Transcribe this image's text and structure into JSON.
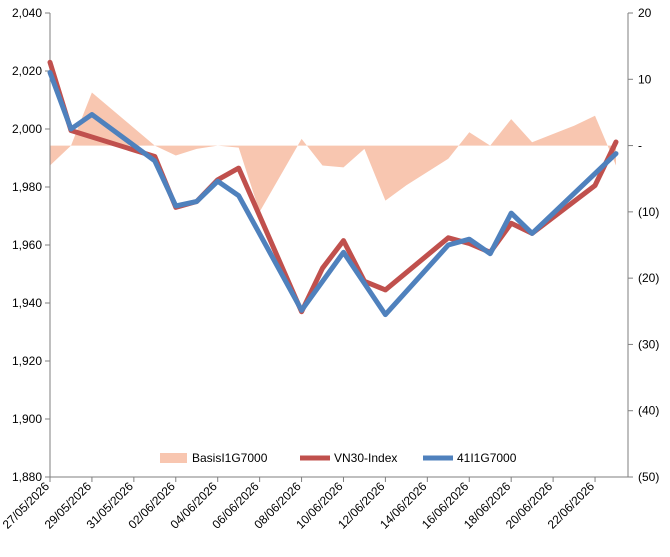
{
  "chart_data": {
    "type": "line",
    "x": [
      "27/05/2026",
      "28/05/2026",
      "29/05/2026",
      "30/05/2026",
      "31/05/2026",
      "01/06/2026",
      "02/06/2026",
      "03/06/2026",
      "04/06/2026",
      "05/06/2026",
      "06/06/2026",
      "07/06/2026",
      "08/06/2026",
      "09/06/2026",
      "10/06/2026",
      "11/06/2026",
      "12/06/2026",
      "13/06/2026",
      "14/06/2026",
      "15/06/2026",
      "16/06/2026",
      "17/06/2026",
      "18/06/2026",
      "19/06/2026",
      "20/06/2026",
      "21/06/2026",
      "22/06/2026",
      "23/06/2026"
    ],
    "x_tick_labels": [
      "27/05/2026",
      "29/05/2026",
      "31/05/2026",
      "02/06/2026",
      "04/06/2026",
      "06/06/2026",
      "08/06/2026",
      "10/06/2026",
      "12/06/2026",
      "14/06/2026",
      "16/06/2026",
      "18/06/2026",
      "20/06/2026",
      "22/06/2026"
    ],
    "y_left": {
      "min": 1880,
      "max": 2040,
      "ticks": [
        "1,880",
        "1,900",
        "1,920",
        "1,940",
        "1,960",
        "1,980",
        "2,000",
        "2,020",
        "2,040"
      ]
    },
    "y_right": {
      "min": -50,
      "max": 20,
      "ticks": [
        "20",
        "10",
        "-",
        "(10)",
        "(20)",
        "(30)",
        "(40)",
        "(50)"
      ]
    },
    "series": [
      {
        "name": "BasisI1G7000",
        "kind": "area",
        "axis": "right",
        "color": "#f8c6b0",
        "points": [
          [
            "27/05/2026",
            -3
          ],
          [
            "28/05/2026",
            0
          ],
          [
            "29/05/2026",
            8
          ],
          [
            "01/06/2026",
            0
          ],
          [
            "02/06/2026",
            -1.5
          ],
          [
            "03/06/2026",
            -0.5
          ],
          [
            "04/06/2026",
            0
          ],
          [
            "05/06/2026",
            -0.3
          ],
          [
            "06/06/2026",
            -10
          ],
          [
            "08/06/2026",
            1
          ],
          [
            "09/06/2026",
            -3
          ],
          [
            "10/06/2026",
            -3.3
          ],
          [
            "11/06/2026",
            -0.5
          ],
          [
            "12/06/2026",
            -8.3
          ],
          [
            "13/06/2026",
            -6
          ],
          [
            "15/06/2026",
            -2
          ],
          [
            "16/06/2026",
            2
          ],
          [
            "17/06/2026",
            0
          ],
          [
            "18/06/2026",
            4
          ],
          [
            "19/06/2026",
            0.5
          ],
          [
            "21/06/2026",
            3
          ],
          [
            "22/06/2026",
            4.5
          ],
          [
            "23/06/2026",
            -3
          ]
        ]
      },
      {
        "name": "VN30-Index",
        "kind": "line",
        "axis": "left",
        "color": "#c0504d",
        "points": [
          [
            "27/05/2026",
            2023
          ],
          [
            "28/05/2026",
            1999.5
          ],
          [
            "01/06/2026",
            1990.5
          ],
          [
            "02/06/2026",
            1973
          ],
          [
            "03/06/2026",
            1975
          ],
          [
            "04/06/2026",
            1982.5
          ],
          [
            "05/06/2026",
            1986.5
          ],
          [
            "08/06/2026",
            1937
          ],
          [
            "09/06/2026",
            1952
          ],
          [
            "10/06/2026",
            1961.5
          ],
          [
            "11/06/2026",
            1947.5
          ],
          [
            "12/06/2026",
            1944.5
          ],
          [
            "15/06/2026",
            1962.5
          ],
          [
            "16/06/2026",
            1960.5
          ],
          [
            "17/06/2026",
            1957.5
          ],
          [
            "18/06/2026",
            1967.5
          ],
          [
            "19/06/2026",
            1964
          ],
          [
            "22/06/2026",
            1980.5
          ],
          [
            "23/06/2026",
            1995.5
          ]
        ]
      },
      {
        "name": "41I1G7000",
        "kind": "line",
        "axis": "left",
        "color": "#4f81bd",
        "points": [
          [
            "27/05/2026",
            2019.5
          ],
          [
            "28/05/2026",
            2000
          ],
          [
            "29/05/2026",
            2005
          ],
          [
            "01/06/2026",
            1989
          ],
          [
            "02/06/2026",
            1973.5
          ],
          [
            "03/06/2026",
            1975
          ],
          [
            "04/06/2026",
            1982
          ],
          [
            "05/06/2026",
            1977
          ],
          [
            "08/06/2026",
            1937.5
          ],
          [
            "10/06/2026",
            1957.5
          ],
          [
            "12/06/2026",
            1936
          ],
          [
            "15/06/2026",
            1960
          ],
          [
            "16/06/2026",
            1962
          ],
          [
            "17/06/2026",
            1957
          ],
          [
            "18/06/2026",
            1971
          ],
          [
            "19/06/2026",
            1964
          ],
          [
            "23/06/2026",
            1991.5
          ]
        ]
      }
    ],
    "legend_position": "bottom-center",
    "grid": false
  }
}
